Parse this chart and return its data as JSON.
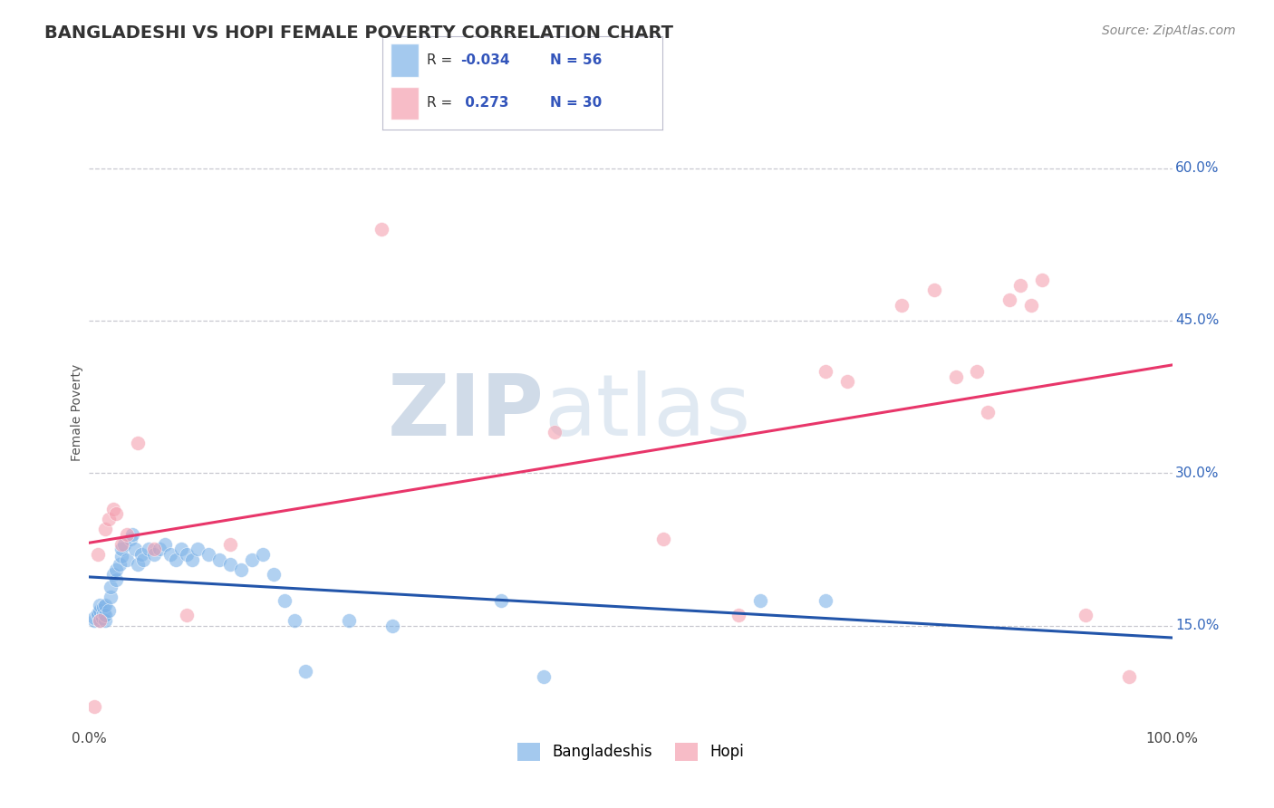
{
  "title": "BANGLADESHI VS HOPI FEMALE POVERTY CORRELATION CHART",
  "source_text": "Source: ZipAtlas.com",
  "ylabel": "Female Poverty",
  "xlim": [
    0.0,
    1.0
  ],
  "ylim": [
    0.05,
    0.67
  ],
  "yticks": [
    0.15,
    0.3,
    0.45,
    0.6
  ],
  "ytick_labels": [
    "15.0%",
    "30.0%",
    "45.0%",
    "60.0%"
  ],
  "xtick_labels": [
    "0.0%",
    "100.0%"
  ],
  "legend_labels": [
    "Bangladeshis",
    "Hopi"
  ],
  "blue_R": -0.034,
  "blue_N": 56,
  "pink_R": 0.273,
  "pink_N": 30,
  "blue_color": "#7EB3E8",
  "pink_color": "#F4A0B0",
  "blue_line_color": "#2255AA",
  "pink_line_color": "#E8366A",
  "watermark_zip": "ZIP",
  "watermark_atlas": "atlas",
  "background_color": "#FFFFFF",
  "grid_color": "#C8C8D0",
  "blue_x": [
    0.005,
    0.005,
    0.008,
    0.008,
    0.01,
    0.01,
    0.01,
    0.012,
    0.013,
    0.013,
    0.015,
    0.015,
    0.015,
    0.018,
    0.02,
    0.02,
    0.022,
    0.025,
    0.025,
    0.028,
    0.03,
    0.03,
    0.032,
    0.035,
    0.038,
    0.04,
    0.042,
    0.045,
    0.048,
    0.05,
    0.055,
    0.06,
    0.065,
    0.07,
    0.075,
    0.08,
    0.085,
    0.09,
    0.095,
    0.1,
    0.11,
    0.12,
    0.13,
    0.14,
    0.15,
    0.16,
    0.17,
    0.18,
    0.19,
    0.2,
    0.24,
    0.28,
    0.38,
    0.42,
    0.62,
    0.68
  ],
  "blue_y": [
    0.155,
    0.158,
    0.16,
    0.162,
    0.155,
    0.165,
    0.17,
    0.158,
    0.162,
    0.168,
    0.155,
    0.16,
    0.17,
    0.165,
    0.178,
    0.188,
    0.2,
    0.195,
    0.205,
    0.21,
    0.218,
    0.225,
    0.23,
    0.215,
    0.235,
    0.24,
    0.225,
    0.21,
    0.22,
    0.215,
    0.225,
    0.22,
    0.225,
    0.23,
    0.22,
    0.215,
    0.225,
    0.22,
    0.215,
    0.225,
    0.22,
    0.215,
    0.21,
    0.205,
    0.215,
    0.22,
    0.2,
    0.175,
    0.155,
    0.105,
    0.155,
    0.15,
    0.175,
    0.1,
    0.175,
    0.175
  ],
  "pink_x": [
    0.005,
    0.008,
    0.01,
    0.015,
    0.018,
    0.022,
    0.025,
    0.03,
    0.035,
    0.045,
    0.06,
    0.09,
    0.13,
    0.27,
    0.43,
    0.53,
    0.6,
    0.68,
    0.7,
    0.75,
    0.78,
    0.8,
    0.82,
    0.83,
    0.85,
    0.86,
    0.87,
    0.88,
    0.92,
    0.96
  ],
  "pink_y": [
    0.07,
    0.22,
    0.155,
    0.245,
    0.255,
    0.265,
    0.26,
    0.23,
    0.24,
    0.33,
    0.225,
    0.16,
    0.23,
    0.54,
    0.34,
    0.235,
    0.16,
    0.4,
    0.39,
    0.465,
    0.48,
    0.395,
    0.4,
    0.36,
    0.47,
    0.485,
    0.465,
    0.49,
    0.16,
    0.1
  ]
}
